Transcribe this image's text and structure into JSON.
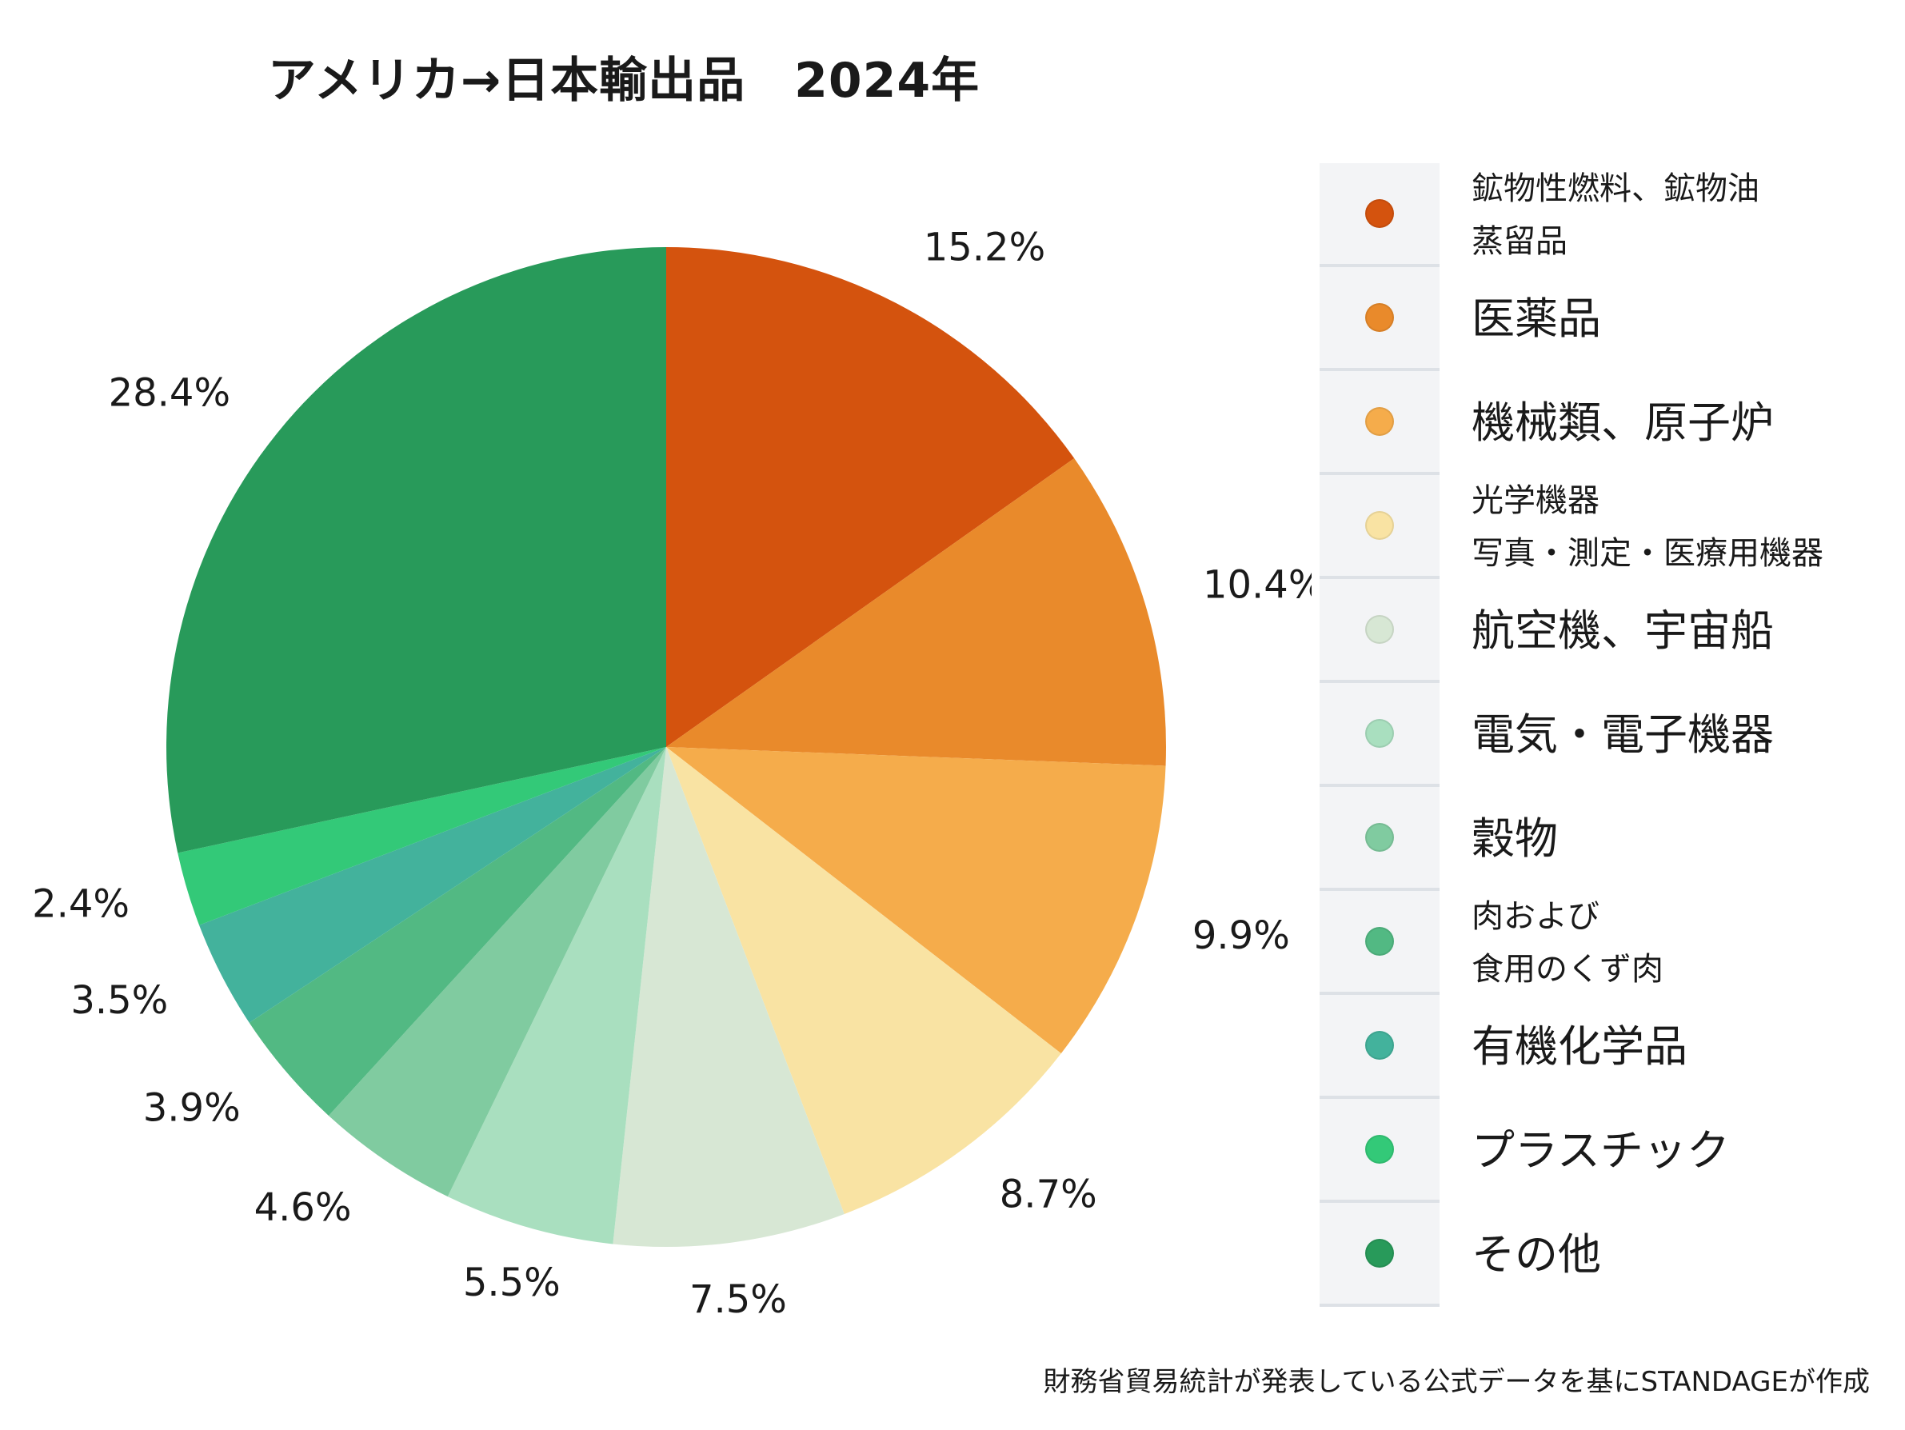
{
  "chart_data": {
    "type": "pie",
    "title": "アメリカ→日本輸出品　2024年",
    "source_note": "財務省貿易統計が発表している公式データを基にSTANDAGEが作成",
    "legend_position": "right",
    "slices": [
      {
        "label": "鉱物性燃料、鉱物油\n蒸留品",
        "value": 15.2,
        "display": "15.2%",
        "color": "#d4530e"
      },
      {
        "label": "医薬品",
        "value": 10.4,
        "display": "10.4%",
        "color": "#e98a2b"
      },
      {
        "label": "機械類、原子炉",
        "value": 9.9,
        "display": "9.9%",
        "color": "#f5ac4b"
      },
      {
        "label": "光学機器\n写真・測定・医療用機器",
        "value": 8.7,
        "display": "8.7%",
        "color": "#f9e3a3"
      },
      {
        "label": "航空機、宇宙船",
        "value": 7.5,
        "display": "7.5%",
        "color": "#d7e7d4"
      },
      {
        "label": "電気・電子機器",
        "value": 5.5,
        "display": "5.5%",
        "color": "#a9dfbf"
      },
      {
        "label": "穀物",
        "value": 4.6,
        "display": "4.6%",
        "color": "#80cba0"
      },
      {
        "label": "肉および\n食用のくず肉",
        "value": 3.9,
        "display": "3.9%",
        "color": "#52b983"
      },
      {
        "label": "有機化学品",
        "value": 3.5,
        "display": "3.5%",
        "color": "#43b29c"
      },
      {
        "label": "プラスチック",
        "value": 2.4,
        "display": "2.4%",
        "color": "#33c978"
      },
      {
        "label": "その他",
        "value": 28.4,
        "display": "28.4%",
        "color": "#289a5a"
      }
    ]
  }
}
